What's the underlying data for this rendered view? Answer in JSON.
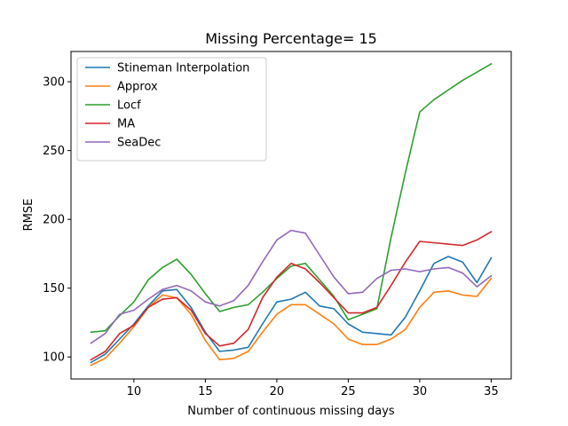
{
  "chart_data": {
    "type": "line",
    "title": "Missing Percentage= 15",
    "xlabel": "Number of continuous missing days",
    "ylabel": "RMSE",
    "xlim": [
      5.6,
      36.4
    ],
    "ylim": [
      84,
      322
    ],
    "xticks": [
      10,
      15,
      20,
      25,
      30,
      35
    ],
    "yticks": [
      100,
      150,
      200,
      250,
      300
    ],
    "grid": false,
    "legend_position": "top-left",
    "x": [
      7,
      8,
      9,
      10,
      11,
      12,
      13,
      14,
      15,
      16,
      17,
      18,
      19,
      20,
      21,
      22,
      23,
      24,
      25,
      26,
      27,
      28,
      29,
      30,
      31,
      32,
      33,
      34,
      35
    ],
    "series": [
      {
        "name": "Stineman Interpolation",
        "color": "#1f77b4",
        "values": [
          96,
          102,
          113,
          124,
          137,
          148,
          149,
          136,
          118,
          104,
          105,
          107,
          124,
          140,
          142,
          147,
          137,
          135,
          124,
          118,
          117,
          116,
          129,
          148,
          168,
          173,
          169,
          154,
          172
        ]
      },
      {
        "name": "Approx",
        "color": "#ff7f0e",
        "values": [
          94,
          99,
          110,
          122,
          136,
          145,
          143,
          131,
          112,
          98,
          99,
          104,
          118,
          131,
          138,
          138,
          131,
          124,
          113,
          109,
          109,
          113,
          120,
          136,
          147,
          148,
          145,
          144,
          157
        ]
      },
      {
        "name": "Locf",
        "color": "#2ca02c",
        "values": [
          118,
          119,
          130,
          140,
          156,
          165,
          171,
          160,
          146,
          133,
          136,
          138,
          147,
          157,
          166,
          168,
          156,
          144,
          127,
          131,
          135,
          187,
          234,
          278,
          287,
          294,
          301,
          307,
          313
        ]
      },
      {
        "name": "MA",
        "color": "#d62728",
        "values": [
          98,
          104,
          117,
          123,
          136,
          142,
          143,
          134,
          117,
          108,
          110,
          120,
          143,
          158,
          168,
          164,
          154,
          143,
          132,
          132,
          136,
          152,
          169,
          184,
          183,
          182,
          181,
          185,
          191
        ]
      },
      {
        "name": "SeaDec",
        "color": "#9467bd",
        "values": [
          110,
          117,
          131,
          134,
          142,
          149,
          152,
          148,
          140,
          137,
          141,
          152,
          169,
          185,
          192,
          190,
          174,
          158,
          146,
          147,
          157,
          163,
          164,
          162,
          164,
          165,
          161,
          151,
          159
        ]
      }
    ]
  }
}
